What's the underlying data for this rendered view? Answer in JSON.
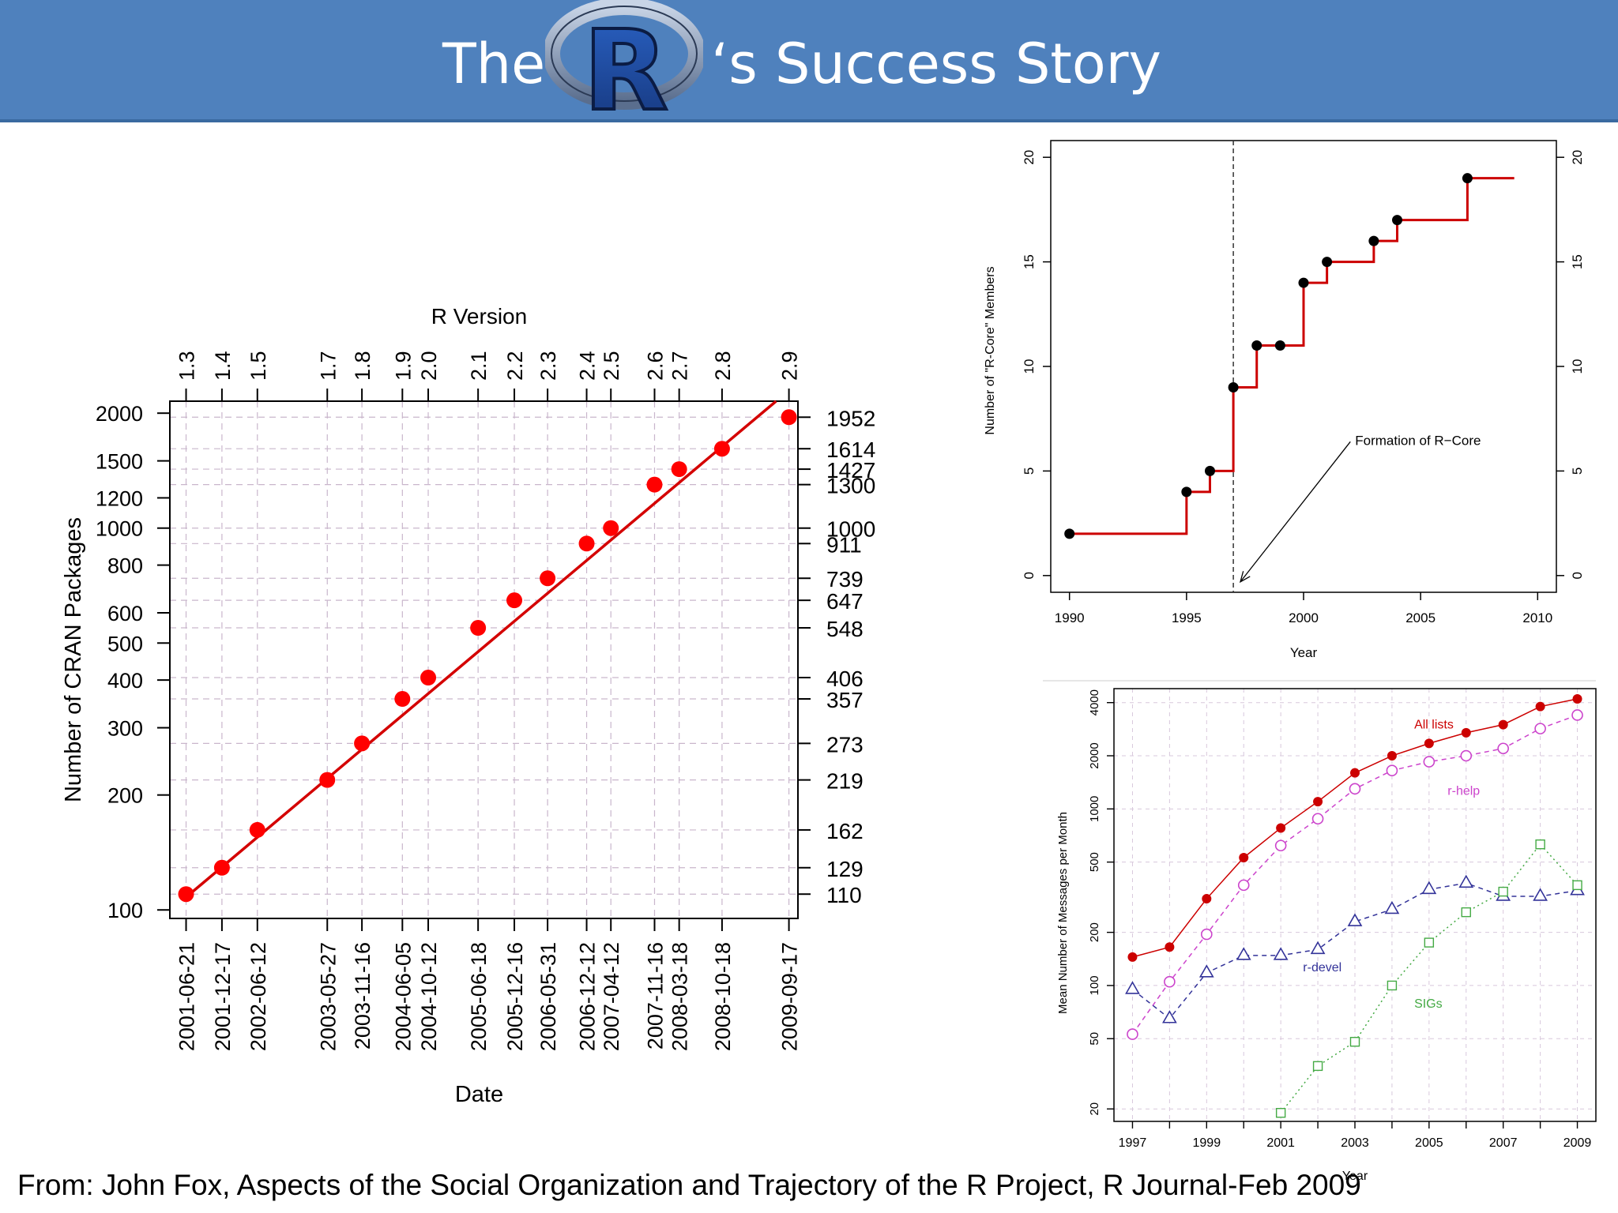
{
  "header": {
    "title_before": "The",
    "title_after": "‘s Success Story",
    "logo_letter": "R",
    "bg_color": "#4f81bd"
  },
  "footer": {
    "citation": "From: John Fox, Aspects of the Social Organization and Trajectory of the R Project, R Journal-Feb 2009"
  },
  "chart_data": [
    {
      "type": "scatter",
      "title": "",
      "xlabel": "Date",
      "ylabel": "Number of CRAN Packages",
      "top_axis_label": "R Version",
      "y_scale": "log",
      "ylim": [
        95,
        2150
      ],
      "xlim": [
        "2001-04-01",
        "2009-11-01"
      ],
      "grid": true,
      "left_ticks": [
        100,
        200,
        300,
        400,
        500,
        600,
        800,
        1000,
        1200,
        1500,
        2000
      ],
      "right_ticks": [
        "110",
        "129",
        "162",
        "219",
        "273",
        "357",
        "406",
        "548",
        "647",
        "739",
        "911",
        "1000",
        "1300",
        "1427",
        "1614",
        "1952"
      ],
      "points": [
        {
          "date": "2001-06-21",
          "label": "2001-06-21",
          "version": "1.3",
          "value": 110
        },
        {
          "date": "2001-12-17",
          "label": "2001-12-17",
          "version": "1.4",
          "value": 129
        },
        {
          "date": "2002-06-12",
          "label": "2002-06-12",
          "version": "1.5",
          "value": 162
        },
        {
          "date": "2003-05-27",
          "label": "2003-05-27",
          "version": "1.7",
          "value": 219
        },
        {
          "date": "2003-11-16",
          "label": "2003-11-16",
          "version": "1.8",
          "value": 273
        },
        {
          "date": "2004-06-05",
          "label": "2004-06-05",
          "version": "1.9",
          "value": 357
        },
        {
          "date": "2004-10-12",
          "label": "2004-10-12",
          "version": "2.0",
          "value": 406
        },
        {
          "date": "2005-06-18",
          "label": "2005-06-18",
          "version": "2.1",
          "value": 548
        },
        {
          "date": "2005-12-16",
          "label": "2005-12-16",
          "version": "2.2",
          "value": 647
        },
        {
          "date": "2006-05-31",
          "label": "2006-05-31",
          "version": "2.3",
          "value": 739
        },
        {
          "date": "2006-12-12",
          "label": "2006-12-12",
          "version": "2.4",
          "value": 911
        },
        {
          "date": "2007-04-12",
          "label": "2007-04-12",
          "version": "2.5",
          "value": 1000
        },
        {
          "date": "2007-11-16",
          "label": "2007-11-16",
          "version": "2.6",
          "value": 1300
        },
        {
          "date": "2008-03-18",
          "label": "2008-03-18",
          "version": "2.7",
          "value": 1427
        },
        {
          "date": "2008-10-18",
          "label": "2008-10-18",
          "version": "2.8",
          "value": 1614
        },
        {
          "date": "2009-09-17",
          "label": "2009-09-17",
          "version": "2.9",
          "value": 1952
        }
      ],
      "fit_line": [
        [
          "2001-06-21",
          108
        ],
        [
          "2009-07-15",
          2150
        ]
      ],
      "point_color": "#ff0000",
      "line_color": "#d40000"
    },
    {
      "type": "line",
      "title": "",
      "xlabel": "Year",
      "ylabel": "Number of \"R-Core\" Members",
      "xlim": [
        1989.2,
        2010.8
      ],
      "ylim": [
        -0.8,
        20.8
      ],
      "x_ticks": [
        1990,
        1995,
        2000,
        2005,
        2010
      ],
      "y_ticks": [
        0,
        5,
        10,
        15,
        20
      ],
      "steps": [
        [
          1990,
          2
        ],
        [
          1995,
          4
        ],
        [
          1996,
          5
        ],
        [
          1997,
          9
        ],
        [
          1998,
          11
        ],
        [
          1999,
          11
        ],
        [
          2000,
          14
        ],
        [
          2001,
          15
        ],
        [
          2003,
          16
        ],
        [
          2004,
          17
        ],
        [
          2007,
          19
        ]
      ],
      "end_x": 2009,
      "vline_x": 1997,
      "annotation": "Formation of R−Core",
      "annotation_arrow": {
        "from": [
          2002,
          6.4
        ],
        "to": [
          1997.3,
          -0.3
        ]
      },
      "line_color": "#cc0000"
    },
    {
      "type": "line",
      "title": "",
      "xlabel": "Year",
      "ylabel": "Mean Number of Messages per Month",
      "y_scale": "log",
      "xlim": [
        1996.5,
        2009.5
      ],
      "ylim": [
        17,
        4800
      ],
      "x_ticks": [
        1997,
        1999,
        2001,
        2003,
        2005,
        2007,
        2009
      ],
      "y_ticks": [
        20,
        50,
        100,
        200,
        500,
        1000,
        2000,
        4000
      ],
      "series": [
        {
          "name": "All lists",
          "marker": "filled-circle",
          "color": "#cc0000",
          "x": [
            1997,
            1998,
            1999,
            2000,
            2001,
            2002,
            2003,
            2004,
            2005,
            2006,
            2007,
            2008,
            2009
          ],
          "values": [
            145,
            165,
            310,
            530,
            780,
            1100,
            1600,
            2000,
            2350,
            2700,
            3000,
            3800,
            4200
          ],
          "label_at": [
            2004.6,
            2850
          ]
        },
        {
          "name": "r-help",
          "marker": "open-circle",
          "color": "#cc44cc",
          "x": [
            1997,
            1998,
            1999,
            2000,
            2001,
            2002,
            2003,
            2004,
            2005,
            2006,
            2007,
            2008,
            2009
          ],
          "values": [
            53,
            105,
            195,
            370,
            620,
            880,
            1300,
            1650,
            1850,
            2000,
            2200,
            2850,
            3400
          ],
          "label_at": [
            2005.5,
            1200
          ]
        },
        {
          "name": "r-devel",
          "marker": "triangle",
          "color": "#333399",
          "x": [
            1997,
            1998,
            1999,
            2000,
            2001,
            2002,
            2003,
            2004,
            2005,
            2006,
            2007,
            2008,
            2009
          ],
          "values": [
            95,
            65,
            118,
            148,
            148,
            160,
            230,
            270,
            350,
            380,
            320,
            320,
            345
          ],
          "label_at": [
            2001.6,
            120
          ]
        },
        {
          "name": "SIGs",
          "marker": "square",
          "color": "#44aa44",
          "x": [
            2001,
            2002,
            2003,
            2004,
            2005,
            2006,
            2007,
            2008,
            2009
          ],
          "values": [
            19,
            35,
            48,
            100,
            175,
            260,
            340,
            630,
            370
          ],
          "label_at": [
            2004.6,
            75
          ]
        }
      ]
    }
  ]
}
